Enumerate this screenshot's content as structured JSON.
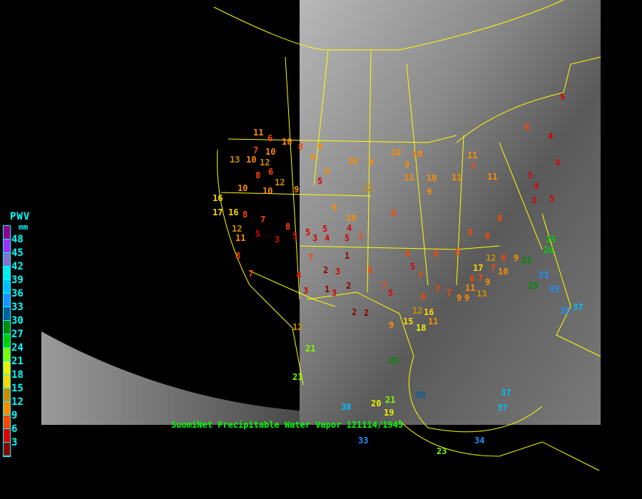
{
  "legend": {
    "title": "PWV",
    "unit": "mm",
    "labels": [
      "48",
      "45",
      "42",
      "39",
      "36",
      "33",
      "30",
      "27",
      "24",
      "21",
      "18",
      "15",
      "12",
      "9",
      "6",
      "3"
    ],
    "colors": [
      "#8b008b",
      "#9b30ff",
      "#8470d0",
      "#00eeee",
      "#00bfff",
      "#1e90ff",
      "#005f9f",
      "#008b00",
      "#00cd00",
      "#7cfc00",
      "#eeee00",
      "#ffd700",
      "#cd8c00",
      "#ff8c00",
      "#ff4500",
      "#dd0000",
      "#8b0000"
    ]
  },
  "caption": "SuomiNet Precipitable Water Vapor 121114/1945",
  "colors": {
    "boundaries": "#ffff00",
    "background": "#000000"
  },
  "stations": [
    11,
    6,
    10,
    8,
    7,
    10,
    13,
    10,
    12,
    6,
    8,
    12,
    10,
    10,
    9,
    9,
    9,
    9,
    10,
    9,
    10,
    10,
    9,
    10,
    11,
    12,
    9,
    10,
    8,
    9,
    11,
    11,
    7,
    11,
    5,
    6,
    4,
    5,
    4,
    4,
    3,
    5,
    16,
    17,
    16,
    8,
    7,
    12,
    11,
    8,
    5,
    8,
    5,
    3,
    3,
    4,
    5,
    7,
    4,
    5,
    5,
    7,
    4,
    7,
    3,
    2,
    1,
    1,
    3,
    2,
    3,
    2,
    2,
    8,
    7,
    5,
    6,
    5,
    7,
    6,
    7,
    7,
    9,
    6,
    8,
    8,
    6,
    6,
    9,
    8,
    9,
    11,
    7,
    7,
    8,
    9,
    12,
    10,
    17,
    13,
    9,
    15,
    11,
    18,
    16,
    28,
    25,
    26,
    33,
    29,
    35,
    35,
    37,
    12,
    21,
    21,
    29,
    20,
    21,
    19,
    30,
    38,
    33,
    34,
    37,
    37,
    23,
    12,
    5
  ]
}
